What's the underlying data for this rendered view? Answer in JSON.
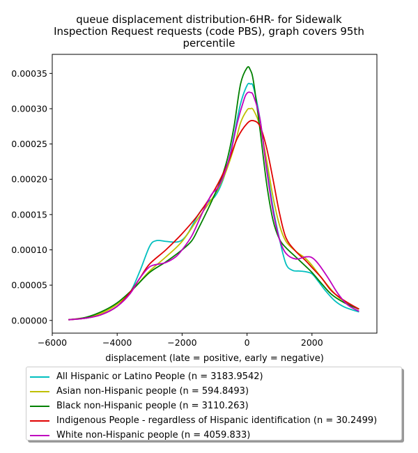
{
  "chart_data": {
    "type": "line",
    "title_lines": [
      "queue displacement distribution-6HR-  for Sidewalk",
      "Inspection Request  requests (code PBS), graph covers 95th",
      "percentile"
    ],
    "xlabel": "displacement (late = positive, early = negative)",
    "ylabel": "",
    "xlim": [
      -6000,
      4000
    ],
    "ylim": [
      -1.8e-05,
      0.000377
    ],
    "x_ticks": [
      -6000,
      -4000,
      -2000,
      0,
      2000
    ],
    "x_tick_labels": [
      "−6000",
      "−4000",
      "−2000",
      "0",
      "2000"
    ],
    "y_ticks": [
      0,
      5e-05,
      0.0001,
      0.00015,
      0.0002,
      0.00025,
      0.0003,
      0.00035
    ],
    "y_tick_labels": [
      "0.00000",
      "0.00005",
      "0.00010",
      "0.00015",
      "0.00020",
      "0.00025",
      "0.00030",
      "0.00035"
    ],
    "grid": false,
    "legend_position": "below",
    "series": [
      {
        "name": "All Hispanic or Latino People (n = 3183.9542)",
        "color": "#00bfbf",
        "x": [
          -5500,
          -5000,
          -4500,
          -4000,
          -3600,
          -3300,
          -3000,
          -2800,
          -2500,
          -2200,
          -2000,
          -1800,
          -1500,
          -1200,
          -1000,
          -800,
          -600,
          -400,
          -200,
          0,
          100,
          200,
          400,
          600,
          800,
          1000,
          1200,
          1400,
          1600,
          1800,
          2000,
          2200,
          2400,
          2700,
          3000,
          3450
        ],
        "y": [
          1e-06,
          3e-06,
          8e-06,
          2e-05,
          4e-05,
          7e-05,
          0.000105,
          0.000113,
          0.000112,
          0.000111,
          0.000114,
          0.000125,
          0.00015,
          0.000168,
          0.000175,
          0.000192,
          0.00022,
          0.000262,
          0.000307,
          0.000333,
          0.000335,
          0.00033,
          0.000285,
          0.00022,
          0.00016,
          0.000115,
          8e-05,
          7.1e-05,
          7e-05,
          6.9e-05,
          6.6e-05,
          5.5e-05,
          4.3e-05,
          2.8e-05,
          1.9e-05,
          1.2e-05
        ]
      },
      {
        "name": "Asian non-Hispanic people (n = 594.8493)",
        "color": "#bfbf00",
        "x": [
          -5500,
          -5000,
          -4500,
          -4000,
          -3600,
          -3300,
          -3000,
          -2500,
          -2000,
          -1500,
          -1000,
          -700,
          -400,
          -200,
          0,
          100,
          200,
          400,
          600,
          800,
          1000,
          1200,
          1500,
          1800,
          2000,
          2300,
          2700,
          3000,
          3450
        ],
        "y": [
          1e-06,
          4e-06,
          1e-05,
          2.3e-05,
          4e-05,
          5.5e-05,
          7e-05,
          9e-05,
          0.000112,
          0.000145,
          0.000178,
          0.000205,
          0.000245,
          0.00028,
          0.000298,
          0.0003,
          0.000298,
          0.000275,
          0.000228,
          0.000175,
          0.000135,
          0.000112,
          9.8e-05,
          8.8e-05,
          7.8e-05,
          6e-05,
          3.8e-05,
          2.7e-05,
          1.6e-05
        ]
      },
      {
        "name": "Black non-Hispanic people (n = 3110.263)",
        "color": "#008000",
        "x": [
          -5500,
          -5000,
          -4500,
          -4000,
          -3500,
          -3000,
          -2500,
          -2000,
          -1700,
          -1500,
          -1200,
          -1000,
          -800,
          -600,
          -400,
          -200,
          0,
          100,
          200,
          400,
          600,
          800,
          1000,
          1200,
          1500,
          1800,
          2000,
          2300,
          2600,
          3000,
          3450
        ],
        "y": [
          1e-06,
          4e-06,
          1.2e-05,
          2.5e-05,
          4.5e-05,
          6.8e-05,
          8.3e-05,
          0.0001,
          0.000113,
          0.00013,
          0.000158,
          0.000178,
          0.0002,
          0.00023,
          0.000275,
          0.000335,
          0.000358,
          0.000355,
          0.000338,
          0.00027,
          0.000195,
          0.000142,
          0.000115,
          0.000103,
          9e-05,
          7.7e-05,
          6.8e-05,
          5.2e-05,
          3.7e-05,
          2.5e-05,
          1.6e-05
        ]
      },
      {
        "name": "Indigenous People - regardless of Hispanic identification (n = 30.2499)",
        "color": "#e00000",
        "x": [
          -5500,
          -5000,
          -4500,
          -4000,
          -3600,
          -3300,
          -3000,
          -2500,
          -2000,
          -1500,
          -1000,
          -600,
          -300,
          0,
          200,
          400,
          600,
          800,
          1000,
          1200,
          1500,
          1800,
          2000,
          2300,
          2600,
          3000,
          3450
        ],
        "y": [
          1e-06,
          3e-06,
          8e-06,
          2e-05,
          4e-05,
          6e-05,
          8e-05,
          0.0001,
          0.000123,
          0.00015,
          0.000185,
          0.000222,
          0.000258,
          0.000279,
          0.000283,
          0.000275,
          0.000245,
          0.0002,
          0.000152,
          0.000117,
          9.8e-05,
          8.5e-05,
          7.5e-05,
          6e-05,
          4.2e-05,
          2.8e-05,
          1.6e-05
        ]
      },
      {
        "name": "White non-Hispanic people (n = 4059.833)",
        "color": "#bf00bf",
        "x": [
          -5500,
          -5000,
          -4500,
          -4000,
          -3600,
          -3300,
          -3000,
          -2700,
          -2500,
          -2200,
          -2000,
          -1700,
          -1400,
          -1100,
          -900,
          -700,
          -500,
          -300,
          -100,
          0,
          100,
          200,
          400,
          600,
          800,
          1000,
          1200,
          1500,
          1800,
          2000,
          2200,
          2500,
          2800,
          3100,
          3450
        ],
        "y": [
          1e-06,
          3e-06,
          8e-06,
          2e-05,
          3.8e-05,
          6e-05,
          7.6e-05,
          8e-05,
          8.2e-05,
          9e-05,
          0.0001,
          0.00012,
          0.00015,
          0.000178,
          0.000188,
          0.000208,
          0.000238,
          0.00028,
          0.000312,
          0.000322,
          0.000323,
          0.000318,
          0.000285,
          0.000215,
          0.000155,
          0.000115,
          9.5e-05,
          8.7e-05,
          9e-05,
          8.9e-05,
          8e-05,
          6e-05,
          3.8e-05,
          2.2e-05,
          1.3e-05
        ]
      }
    ]
  }
}
